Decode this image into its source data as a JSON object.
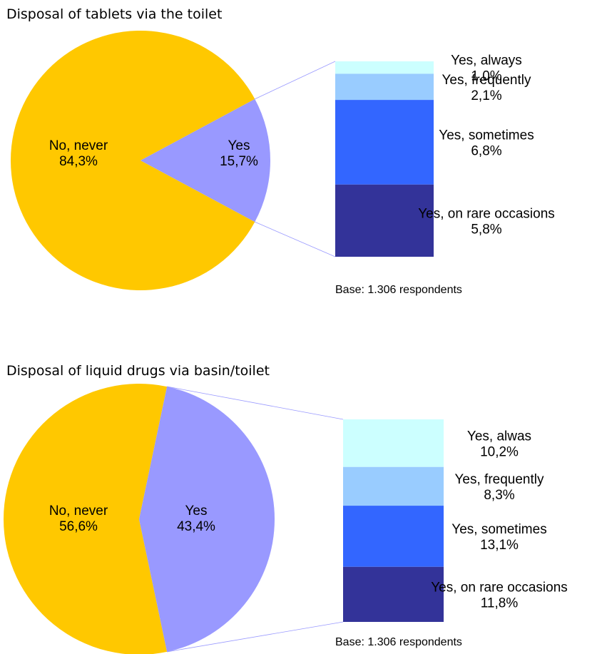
{
  "chart_data": [
    {
      "type": "pie",
      "title": "Disposal of tablets via the toilet",
      "colors": {
        "never": "#ffc800",
        "yes": "#9999ff"
      },
      "pie": [
        {
          "name": "No, never",
          "value": 84.3,
          "label": "84,3%"
        },
        {
          "name": "Yes",
          "value": 15.7,
          "label": "15,7%"
        }
      ],
      "breakdown": [
        {
          "name": "Yes, always",
          "value": 1.0,
          "label": "1,0%",
          "color": "#ccffff"
        },
        {
          "name": "Yes, frequently",
          "value": 2.1,
          "label": "2,1%",
          "color": "#99ccff"
        },
        {
          "name": "Yes, sometimes",
          "value": 6.8,
          "label": "6,8%",
          "color": "#3366ff"
        },
        {
          "name": "Yes, on rare occasions",
          "value": 5.8,
          "label": "5,8%",
          "color": "#333399"
        }
      ],
      "base_note": "Base: 1.306 respondents"
    },
    {
      "type": "pie",
      "title": "Disposal of liquid drugs via basin/toilet",
      "colors": {
        "never": "#ffc800",
        "yes": "#9999ff"
      },
      "pie": [
        {
          "name": "No, never",
          "value": 56.6,
          "label": "56,6%"
        },
        {
          "name": "Yes",
          "value": 43.4,
          "label": "43,4%"
        }
      ],
      "breakdown": [
        {
          "name": "Yes, alwas",
          "value": 10.2,
          "label": "10,2%",
          "color": "#ccffff"
        },
        {
          "name": "Yes, frequently",
          "value": 8.3,
          "label": "8,3%",
          "color": "#99ccff"
        },
        {
          "name": "Yes, sometimes",
          "value": 13.1,
          "label": "13,1%",
          "color": "#3366ff"
        },
        {
          "name": "Yes, on rare occasions",
          "value": 11.8,
          "label": "11,8%",
          "color": "#333399"
        }
      ],
      "base_note": "Base: 1.306 respondents"
    }
  ]
}
